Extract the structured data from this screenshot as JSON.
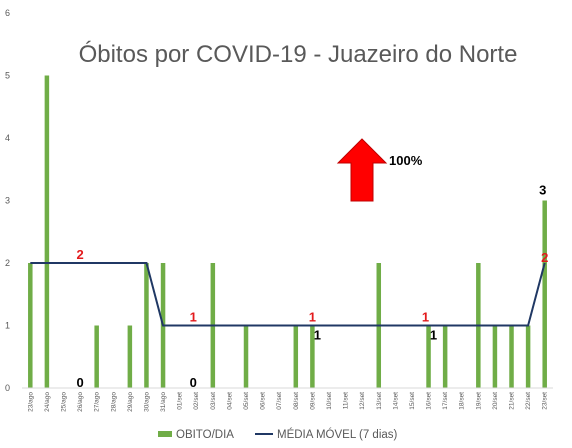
{
  "chart_data": {
    "type": "bar",
    "title": "Óbitos por COVID-19 - Juazeiro do Norte",
    "categories": [
      "23/ago",
      "24/ago",
      "25/ago",
      "26/ago",
      "27/ago",
      "28/ago",
      "29/ago",
      "30/ago",
      "31/ago",
      "01/set",
      "02/set",
      "03/set",
      "04/set",
      "05/set",
      "06/set",
      "07/set",
      "08/set",
      "09/set",
      "10/set",
      "11/set",
      "12/set",
      "13/set",
      "14/set",
      "15/set",
      "16/set",
      "17/set",
      "18/set",
      "19/set",
      "20/set",
      "21/set",
      "22/set",
      "23/set"
    ],
    "series": [
      {
        "name": "OBITO/DIA",
        "type": "bar",
        "color": "#70AD47",
        "values": [
          2,
          5,
          0,
          0,
          1,
          0,
          1,
          2,
          2,
          0,
          0,
          2,
          0,
          1,
          0,
          0,
          1,
          1,
          0,
          0,
          0,
          2,
          0,
          0,
          1,
          1,
          0,
          2,
          1,
          1,
          1,
          3
        ]
      },
      {
        "name": "MÉDIA MÓVEL (7 dias)",
        "type": "line",
        "color": "#203864",
        "values": [
          2,
          2,
          2,
          2,
          2,
          2,
          2,
          2,
          1,
          1,
          1,
          1,
          1,
          1,
          1,
          1,
          1,
          1,
          1,
          1,
          1,
          1,
          1,
          1,
          1,
          1,
          1,
          1,
          1,
          1,
          1,
          2
        ]
      }
    ],
    "ylim": [
      0,
      6
    ],
    "yticks": [
      0,
      1,
      2,
      3,
      4,
      5,
      6
    ],
    "grid": false,
    "legend": "bottom",
    "annotations": [
      {
        "text": "2",
        "index": 3,
        "value": 2,
        "color": "#E31A1C"
      },
      {
        "text": "0",
        "index": 3,
        "value": 0,
        "color": "#000000"
      },
      {
        "text": "1",
        "index": 10,
        "value": 1,
        "color": "#E31A1C"
      },
      {
        "text": "0",
        "index": 10,
        "value": 0,
        "color": "#000000"
      },
      {
        "text": "1",
        "index": 17,
        "value": 1,
        "color": "#E31A1C"
      },
      {
        "text": "1",
        "index": 17,
        "value": 1,
        "color": "#000000"
      },
      {
        "text": "1",
        "index": 24,
        "value": 1,
        "color": "#E31A1C"
      },
      {
        "text": "1",
        "index": 24,
        "value": 1,
        "color": "#000000"
      },
      {
        "text": "3",
        "index": 31,
        "value": 3,
        "color": "#000000"
      },
      {
        "text": "2",
        "index": 31,
        "value": 2,
        "color": "#E31A1C"
      }
    ],
    "trend_indicator": {
      "icon": "red-up-arrow-icon",
      "text": "100%",
      "color": "#FF0000"
    }
  }
}
